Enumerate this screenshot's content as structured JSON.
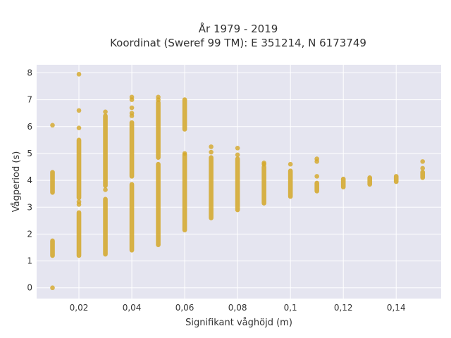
{
  "chart_data": {
    "type": "scatter",
    "title_lines": [
      "År 1979 - 2019",
      "Koordinat (Sweref 99 TM): E 351214, N 6173749"
    ],
    "xlabel": "Signifikant våghöjd (m)",
    "ylabel": "Vågperiod (s)",
    "xlim": [
      0.004,
      0.157
    ],
    "ylim": [
      -0.4,
      8.3
    ],
    "x_ticks": [
      0.02,
      0.04,
      0.06,
      0.08,
      0.1,
      0.12,
      0.14
    ],
    "x_tick_labels": [
      "0,02",
      "0,04",
      "0,06",
      "0,08",
      "0,1",
      "0,12",
      "0,14"
    ],
    "y_ticks": [
      0,
      1,
      2,
      3,
      4,
      5,
      6,
      7,
      8
    ],
    "y_tick_labels": [
      "0",
      "1",
      "2",
      "3",
      "4",
      "5",
      "6",
      "7",
      "8"
    ],
    "grid": true,
    "marker_color": "#d4a82c",
    "background_color": "#e5e5f0",
    "columns": [
      {
        "x": 0.01,
        "ranges": [
          [
            1.2,
            1.75
          ],
          [
            3.55,
            4.3
          ]
        ],
        "points": [
          0.0,
          6.05
        ]
      },
      {
        "x": 0.02,
        "ranges": [
          [
            1.2,
            2.8
          ],
          [
            3.35,
            5.5
          ]
        ],
        "points": [
          3.1,
          3.2,
          5.95,
          6.6,
          7.95
        ]
      },
      {
        "x": 0.03,
        "ranges": [
          [
            1.25,
            3.3
          ],
          [
            3.8,
            6.4
          ]
        ],
        "points": [
          3.65,
          6.55
        ]
      },
      {
        "x": 0.04,
        "ranges": [
          [
            1.4,
            3.85
          ],
          [
            4.15,
            6.15
          ]
        ],
        "points": [
          6.4,
          6.5,
          6.7,
          7.0,
          7.1
        ]
      },
      {
        "x": 0.05,
        "ranges": [
          [
            1.6,
            4.6
          ],
          [
            4.85,
            6.9
          ]
        ],
        "points": [
          7.0,
          7.1
        ]
      },
      {
        "x": 0.06,
        "ranges": [
          [
            2.15,
            4.95
          ],
          [
            5.9,
            7.0
          ]
        ],
        "points": [
          5.0
        ]
      },
      {
        "x": 0.07,
        "ranges": [
          [
            2.6,
            4.85
          ]
        ],
        "points": [
          5.05,
          5.25
        ]
      },
      {
        "x": 0.08,
        "ranges": [
          [
            2.9,
            4.8
          ]
        ],
        "points": [
          4.95,
          5.2
        ]
      },
      {
        "x": 0.09,
        "ranges": [
          [
            3.15,
            4.5
          ]
        ],
        "points": [
          4.6,
          4.65
        ]
      },
      {
        "x": 0.1,
        "ranges": [
          [
            3.4,
            4.35
          ]
        ],
        "points": [
          4.6
        ]
      },
      {
        "x": 0.11,
        "ranges": [
          [
            3.6,
            3.9
          ]
        ],
        "points": [
          4.15,
          4.7,
          4.8
        ]
      },
      {
        "x": 0.12,
        "ranges": [
          [
            3.75,
            4.05
          ]
        ],
        "points": []
      },
      {
        "x": 0.13,
        "ranges": [
          [
            3.85,
            4.1
          ]
        ],
        "points": []
      },
      {
        "x": 0.14,
        "ranges": [
          [
            3.95,
            4.15
          ]
        ],
        "points": []
      },
      {
        "x": 0.15,
        "ranges": [
          [
            4.1,
            4.3
          ]
        ],
        "points": [
          4.45,
          4.7
        ]
      }
    ]
  }
}
